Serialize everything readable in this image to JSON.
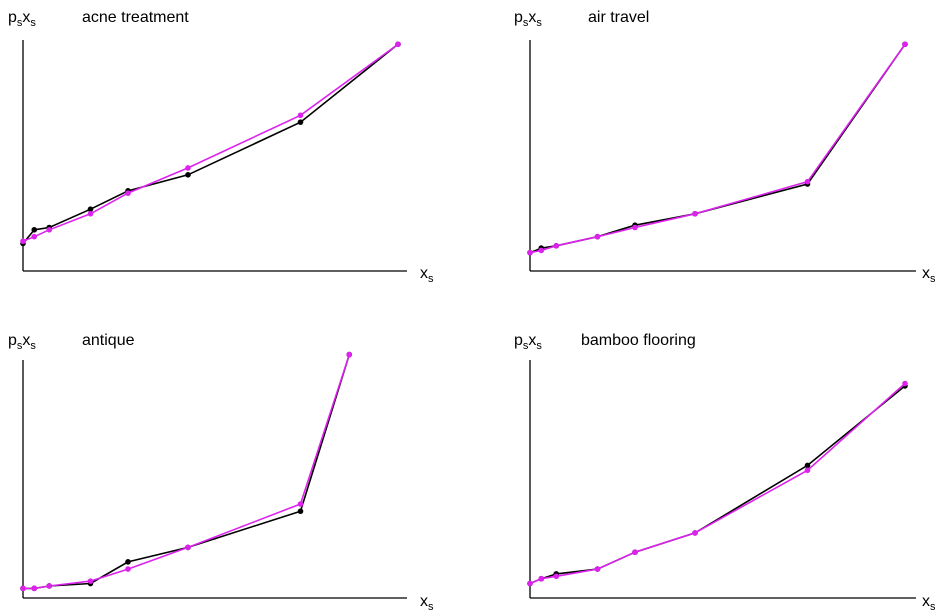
{
  "chart_data": [
    {
      "type": "line",
      "title": "acne treatment",
      "ylabel": {
        "main": "p",
        "sub": "s",
        "main2": "x",
        "sub2": "s"
      },
      "xlabel": {
        "main": "x",
        "sub": "s"
      },
      "xlim": [
        0,
        1
      ],
      "ylim": [
        0,
        1
      ],
      "series": [
        {
          "color": "#000000",
          "x": [
            0.0,
            0.03,
            0.07,
            0.18,
            0.28,
            0.44,
            0.74,
            1.0
          ],
          "y": [
            0.12,
            0.18,
            0.19,
            0.27,
            0.35,
            0.42,
            0.65,
            0.99
          ]
        },
        {
          "color": "#dd22ee",
          "x": [
            0.0,
            0.03,
            0.07,
            0.18,
            0.28,
            0.44,
            0.74,
            1.0
          ],
          "y": [
            0.13,
            0.15,
            0.18,
            0.25,
            0.34,
            0.45,
            0.68,
            0.99
          ]
        }
      ]
    },
    {
      "type": "line",
      "title": "air travel",
      "ylabel": {
        "main": "p",
        "sub": "s",
        "main2": "x",
        "sub2": "s"
      },
      "xlabel": {
        "main": "x",
        "sub": "s"
      },
      "xlim": [
        0,
        1
      ],
      "ylim": [
        0,
        1
      ],
      "series": [
        {
          "color": "#000000",
          "x": [
            0.0,
            0.03,
            0.07,
            0.18,
            0.28,
            0.44,
            0.74,
            1.0
          ],
          "y": [
            0.08,
            0.1,
            0.11,
            0.15,
            0.2,
            0.25,
            0.38,
            0.99
          ]
        },
        {
          "color": "#dd22ee",
          "x": [
            0.0,
            0.03,
            0.07,
            0.18,
            0.28,
            0.44,
            0.74,
            1.0
          ],
          "y": [
            0.08,
            0.09,
            0.11,
            0.15,
            0.19,
            0.25,
            0.39,
            0.99
          ]
        }
      ]
    },
    {
      "type": "line",
      "title": "antique",
      "ylabel": {
        "main": "p",
        "sub": "s",
        "main2": "x",
        "sub2": "s"
      },
      "xlabel": {
        "main": "x",
        "sub": "s"
      },
      "xlim": [
        0,
        1
      ],
      "ylim": [
        0,
        1
      ],
      "series": [
        {
          "color": "#000000",
          "x": [
            0.0,
            0.03,
            0.07,
            0.18,
            0.28,
            0.44,
            0.74,
            0.87
          ],
          "y": [
            0.04,
            0.04,
            0.05,
            0.06,
            0.15,
            0.21,
            0.36,
            1.01
          ]
        },
        {
          "color": "#dd22ee",
          "x": [
            0.0,
            0.03,
            0.07,
            0.18,
            0.28,
            0.44,
            0.74,
            0.87
          ],
          "y": [
            0.04,
            0.04,
            0.05,
            0.07,
            0.12,
            0.21,
            0.39,
            1.01
          ]
        }
      ]
    },
    {
      "type": "line",
      "title": "bamboo flooring",
      "ylabel": {
        "main": "p",
        "sub": "s",
        "main2": "x",
        "sub2": "s"
      },
      "xlabel": {
        "main": "x",
        "sub": "s"
      },
      "xlim": [
        0,
        1
      ],
      "ylim": [
        0,
        1
      ],
      "series": [
        {
          "color": "#000000",
          "x": [
            0.0,
            0.03,
            0.07,
            0.18,
            0.28,
            0.44,
            0.74,
            1.0
          ],
          "y": [
            0.06,
            0.08,
            0.1,
            0.12,
            0.19,
            0.27,
            0.55,
            0.88
          ]
        },
        {
          "color": "#dd22ee",
          "x": [
            0.0,
            0.03,
            0.07,
            0.18,
            0.28,
            0.44,
            0.74,
            1.0
          ],
          "y": [
            0.06,
            0.08,
            0.09,
            0.12,
            0.19,
            0.27,
            0.53,
            0.89
          ]
        }
      ]
    }
  ]
}
